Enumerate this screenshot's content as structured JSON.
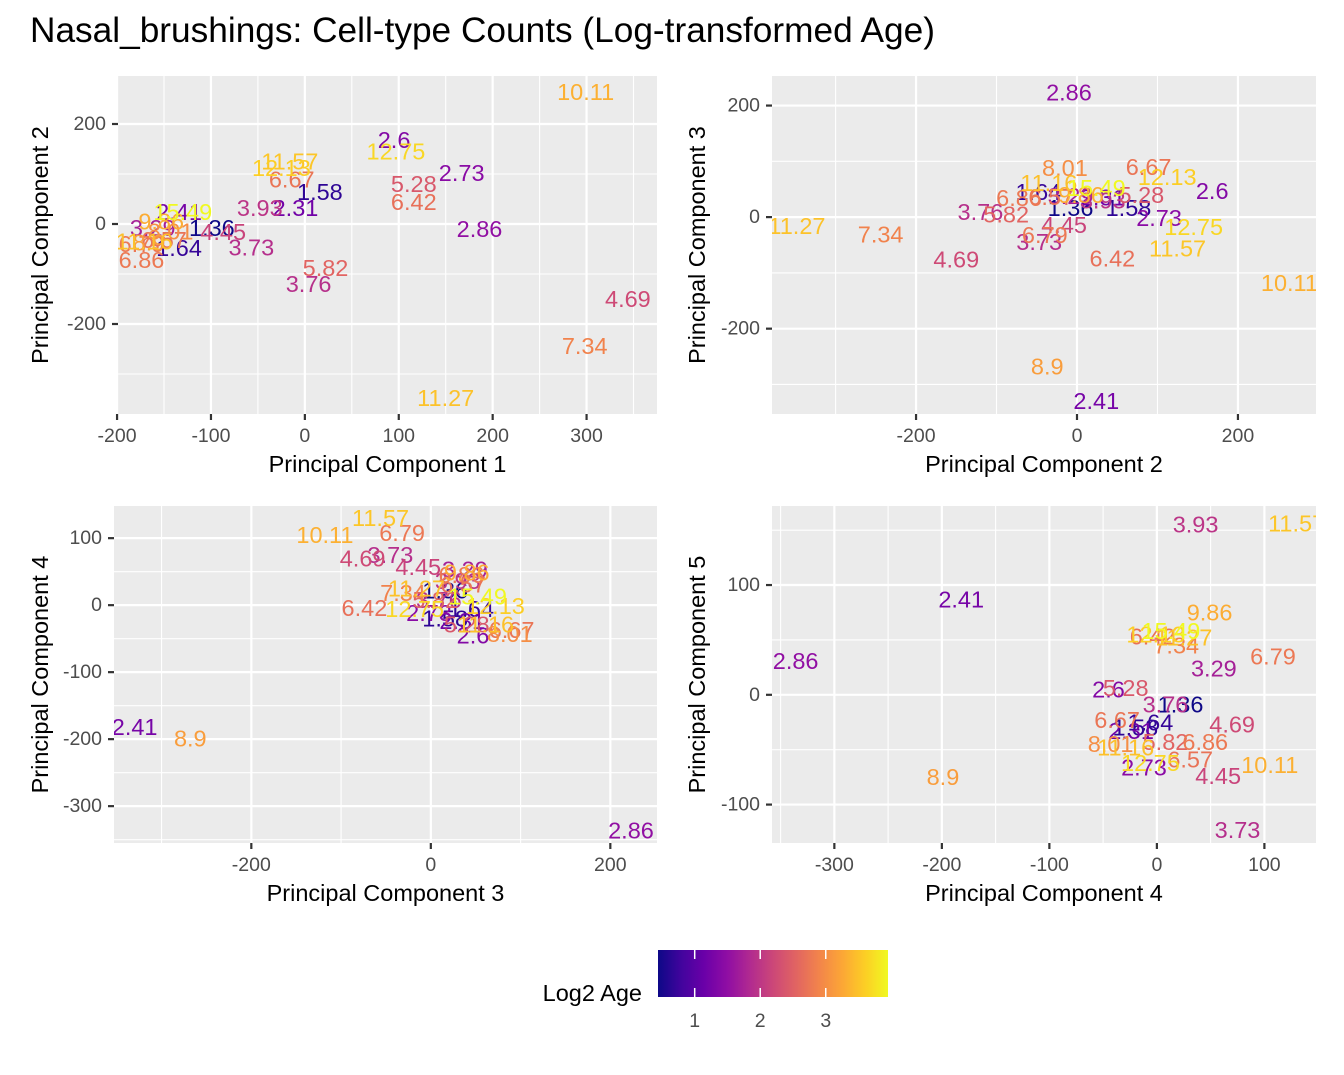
{
  "chart_data": {
    "type": "scatter",
    "title": "Nasal_brushings: Cell-type Counts (Log-transformed Age)",
    "point_style": "text labels (age) colored by log2 age",
    "grid": true,
    "colormap": {
      "name": "plasma",
      "stops": [
        "#0d0887",
        "#41049d",
        "#6a00a8",
        "#8f0da4",
        "#b12a90",
        "#cc4778",
        "#e16462",
        "#f2844b",
        "#fca636",
        "#fcce25",
        "#f0f921"
      ]
    },
    "legend": {
      "title": "Log2 Age",
      "ticks": [
        1,
        2,
        3
      ],
      "range": [
        0.44,
        3.95
      ],
      "position": "bottom"
    },
    "panels": [
      {
        "x_pc": 1,
        "y_pc": 2,
        "xlabel": "Principal Component 1",
        "ylabel": "Principal Component 2",
        "xlim": [
          -199,
          375
        ],
        "ylim": [
          -380,
          296
        ],
        "xticks": [
          -200,
          -100,
          0,
          100,
          200,
          300
        ],
        "yticks": [
          -200,
          0,
          200
        ]
      },
      {
        "x_pc": 2,
        "y_pc": 3,
        "xlabel": "Principal Component 2",
        "ylabel": "Principal Component 3",
        "xlim": [
          -379,
          297
        ],
        "ylim": [
          -353,
          253
        ],
        "xticks": [
          -200,
          0,
          200
        ],
        "yticks": [
          -200,
          0,
          200
        ]
      },
      {
        "x_pc": 3,
        "y_pc": 4,
        "xlabel": "Principal Component 3",
        "ylabel": "Principal Component 4",
        "xlim": [
          -353,
          252
        ],
        "ylim": [
          -355,
          148
        ],
        "xticks": [
          -200,
          0,
          200
        ],
        "yticks": [
          -300,
          -200,
          -100,
          0,
          100
        ]
      },
      {
        "x_pc": 4,
        "y_pc": 5,
        "xlabel": "Principal Component 4",
        "ylabel": "Principal Component 5",
        "xlim": [
          -358,
          148
        ],
        "ylim": [
          -135,
          172
        ],
        "xticks": [
          -300,
          -200,
          -100,
          0,
          100
        ],
        "yticks": [
          -100,
          0,
          100
        ]
      }
    ],
    "samples": [
      {
        "label": "1.36",
        "age": 1.36,
        "pc": [
          -99,
          -8,
          16,
          22,
          -9
        ]
      },
      {
        "label": "1.58",
        "age": 1.58,
        "pc": [
          16,
          64,
          16,
          -20,
          -30
        ]
      },
      {
        "label": "1.64",
        "age": 1.64,
        "pc": [
          -134,
          -48,
          45,
          -6,
          -25
        ]
      },
      {
        "label": "2.31",
        "age": 2.31,
        "pc": [
          -10,
          32,
          35,
          -24,
          -33
        ]
      },
      {
        "label": "2.41",
        "age": 2.41,
        "pc": [
          -134,
          24,
          -330,
          -182,
          87
        ]
      },
      {
        "label": "2.6",
        "age": 2.6,
        "pc": [
          95,
          168,
          47,
          -45,
          5
        ]
      },
      {
        "label": "2.73",
        "age": 2.73,
        "pc": [
          167,
          102,
          -2,
          -12,
          -66
        ]
      },
      {
        "label": "2.86",
        "age": 2.86,
        "pc": [
          186,
          -10,
          223,
          -336,
          31
        ]
      },
      {
        "label": "3.29",
        "age": 3.29,
        "pc": [
          -162,
          -8,
          38,
          53,
          24
        ]
      },
      {
        "label": "3.73",
        "age": 3.73,
        "pc": [
          -57,
          -47,
          -45,
          75,
          -123
        ]
      },
      {
        "label": "3.76",
        "age": 3.76,
        "pc": [
          4,
          -120,
          9,
          8,
          -9
        ]
      },
      {
        "label": "3.93",
        "age": 3.93,
        "pc": [
          -48,
          32,
          30,
          36,
          155
        ]
      },
      {
        "label": "4.45",
        "age": 4.45,
        "pc": [
          -87,
          -16,
          -14,
          57,
          -74
        ]
      },
      {
        "label": "4.69",
        "age": 4.69,
        "pc": [
          344,
          -150,
          -76,
          70,
          -27
        ]
      },
      {
        "label": "5.28",
        "age": 5.28,
        "pc": [
          116,
          80,
          40,
          -29,
          6
        ]
      },
      {
        "label": "5.82",
        "age": 5.82,
        "pc": [
          22,
          -88,
          5,
          8,
          -43
        ]
      },
      {
        "label": "6.42",
        "age": 6.42,
        "pc": [
          116,
          44,
          -74,
          -4,
          53
        ]
      },
      {
        "label": "6.57",
        "age": 6.57,
        "pc": [
          -150,
          -32,
          36,
          31,
          -59
        ]
      },
      {
        "label": "6.67",
        "age": 6.67,
        "pc": [
          -14,
          89,
          90,
          -37,
          -23
        ]
      },
      {
        "label": "6.79",
        "age": 6.79,
        "pc": [
          -174,
          -40,
          -32,
          108,
          35
        ]
      },
      {
        "label": "6.86",
        "age": 6.86,
        "pc": [
          -174,
          -72,
          34,
          45,
          -43
        ]
      },
      {
        "label": "7.34",
        "age": 7.34,
        "pc": [
          298,
          -244,
          -31,
          18,
          45
        ]
      },
      {
        "label": "8.01",
        "age": 8.01,
        "pc": [
          -143,
          -15,
          88,
          -43,
          -45
        ]
      },
      {
        "label": "8.9",
        "age": 8.9,
        "pc": [
          -166,
          -37,
          -268,
          -199,
          -75
        ]
      },
      {
        "label": "9.86",
        "age": 9.86,
        "pc": [
          -153,
          5,
          40,
          49,
          75
        ]
      },
      {
        "label": "10.11",
        "age": 10.11,
        "pc": [
          299,
          264,
          -118,
          105,
          -64
        ]
      },
      {
        "label": "11.16",
        "age": 11.16,
        "pc": [
          -171,
          -35,
          61,
          -29,
          -48
        ]
      },
      {
        "label": "11.27",
        "age": 11.27,
        "pc": [
          150,
          -348,
          -16,
          25,
          52
        ]
      },
      {
        "label": "11.57",
        "age": 11.57,
        "pc": [
          -16,
          125,
          -56,
          130,
          156
        ]
      },
      {
        "label": "12.13",
        "age": 12.13,
        "pc": [
          -25,
          112,
          72,
          -1,
          55
        ]
      },
      {
        "label": "12.75",
        "age": 12.75,
        "pc": [
          97,
          145,
          -18,
          -6,
          -62
        ]
      },
      {
        "label": "15.49",
        "age": 15.49,
        "pc": [
          -130,
          24,
          52,
          13,
          58
        ]
      }
    ]
  }
}
